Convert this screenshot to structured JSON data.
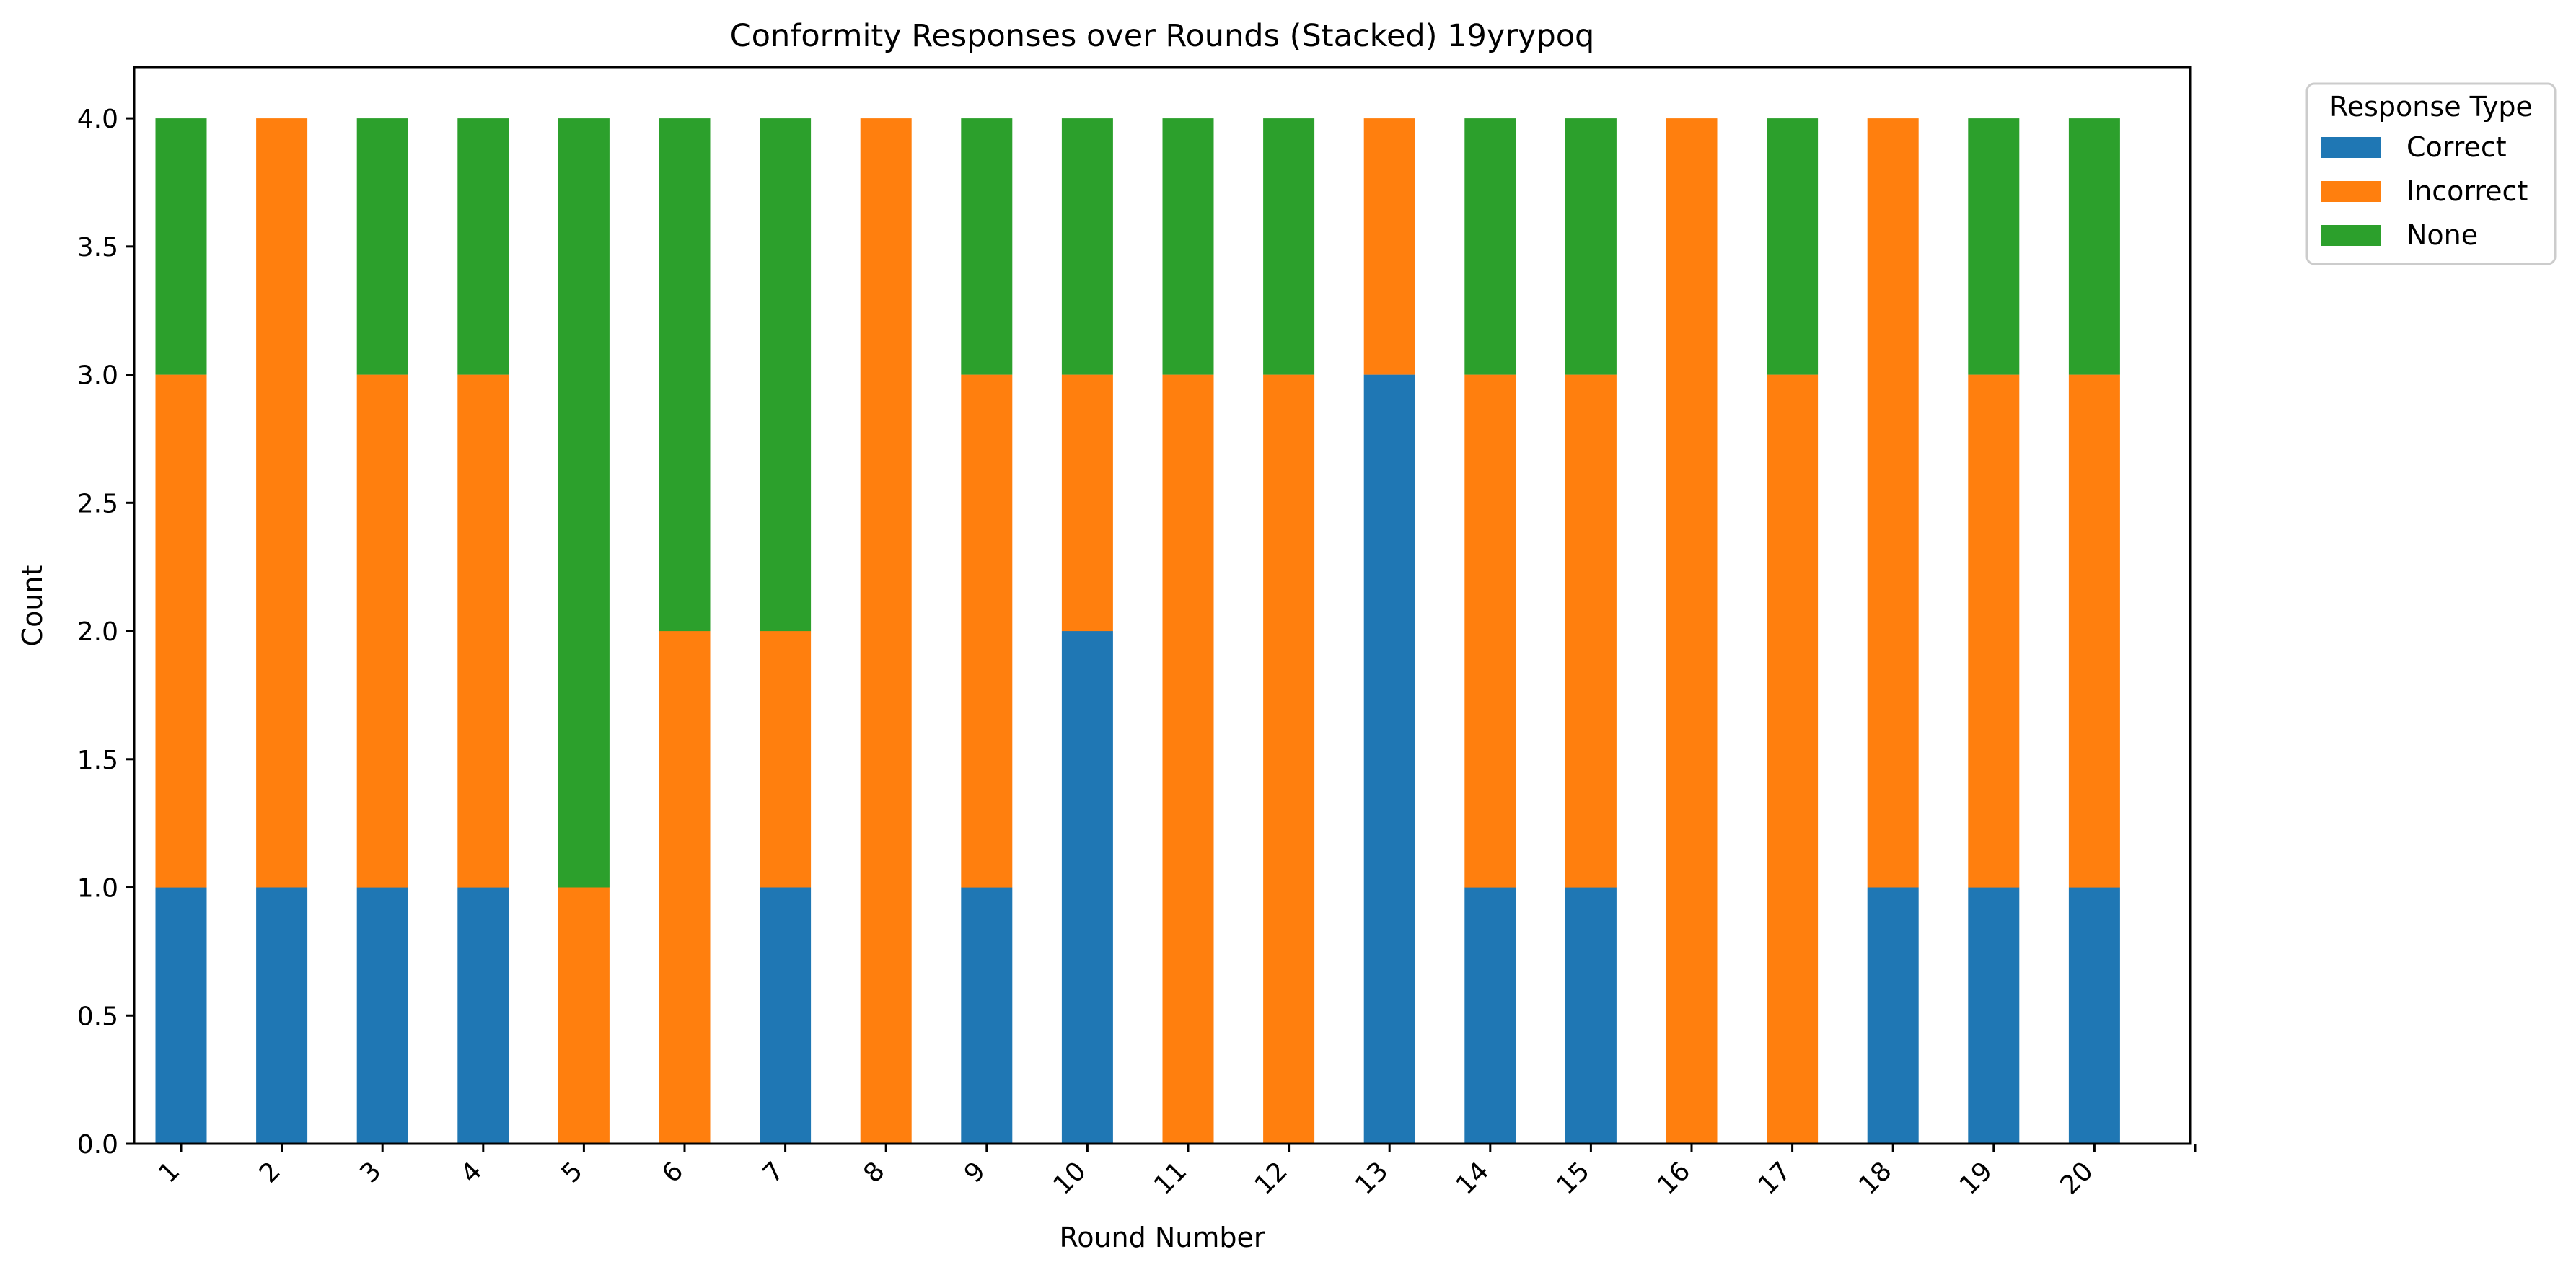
{
  "chart_data": {
    "type": "bar",
    "stacked": true,
    "title": "Conformity Responses over Rounds (Stacked) 19yrypoq",
    "xlabel": "Round Number",
    "ylabel": "Count",
    "ylim": [
      0,
      4.2
    ],
    "yticks": [
      "0.0",
      "0.5",
      "1.0",
      "1.5",
      "2.0",
      "2.5",
      "3.0",
      "3.5",
      "4.0"
    ],
    "categories": [
      "1",
      "2",
      "3",
      "4",
      "5",
      "6",
      "7",
      "8",
      "9",
      "10",
      "11",
      "12",
      "13",
      "14",
      "15",
      "16",
      "17",
      "18",
      "19",
      "20"
    ],
    "grid": false,
    "legend": {
      "title": "Response Type",
      "placement": "outside-top-right"
    },
    "series": [
      {
        "name": "Correct",
        "color": "#1f77b4",
        "values": [
          1,
          1,
          1,
          1,
          0,
          0,
          1,
          0,
          1,
          2,
          0,
          0,
          3,
          1,
          1,
          0,
          0,
          1,
          1,
          1
        ]
      },
      {
        "name": "Incorrect",
        "color": "#ff7f0e",
        "values": [
          2,
          3,
          2,
          2,
          1,
          2,
          1,
          4,
          2,
          1,
          3,
          3,
          1,
          2,
          2,
          4,
          3,
          3,
          2,
          2
        ]
      },
      {
        "name": "None",
        "color": "#2ca02c",
        "values": [
          1,
          0,
          1,
          1,
          3,
          2,
          2,
          0,
          1,
          1,
          1,
          1,
          0,
          1,
          1,
          0,
          1,
          0,
          1,
          1
        ]
      }
    ]
  }
}
